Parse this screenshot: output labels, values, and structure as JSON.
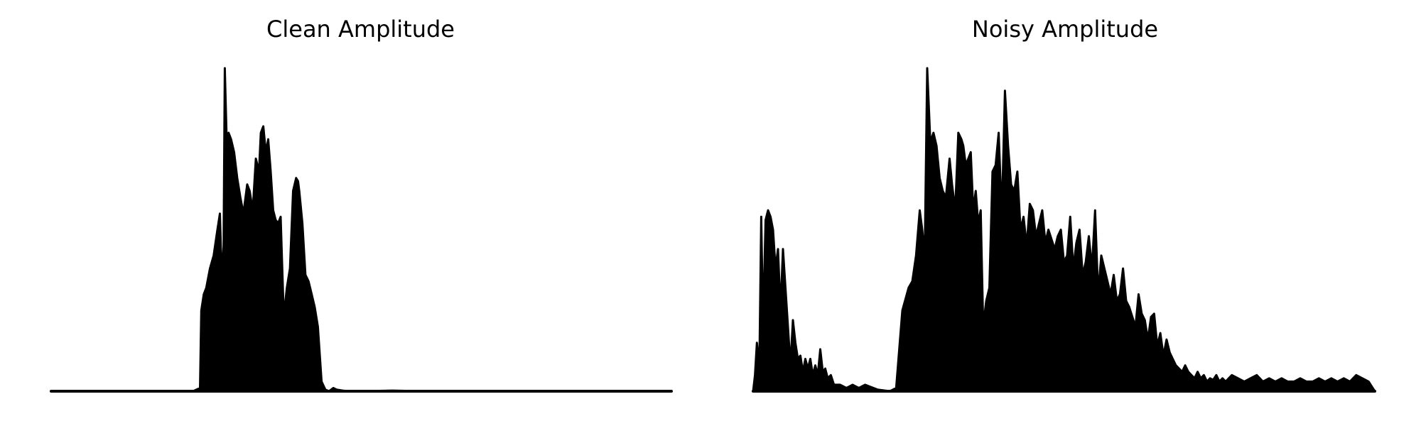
{
  "colors": {
    "line": "#000000",
    "background": "#ffffff"
  },
  "chart_data": [
    {
      "type": "area",
      "title": "Clean Amplitude",
      "axes_visible": false,
      "grid": false,
      "xlim": [
        0,
        1
      ],
      "ylim": [
        0,
        1
      ],
      "series": [
        {
          "x": [
            0.0,
            0.1,
            0.2,
            0.23,
            0.24,
            0.242,
            0.246,
            0.25,
            0.256,
            0.262,
            0.268,
            0.272,
            0.275,
            0.278,
            0.28,
            0.283,
            0.286,
            0.29,
            0.295,
            0.3,
            0.305,
            0.31,
            0.316,
            0.32,
            0.325,
            0.33,
            0.335,
            0.338,
            0.342,
            0.346,
            0.35,
            0.354,
            0.358,
            0.362,
            0.366,
            0.37,
            0.375,
            0.38,
            0.385,
            0.39,
            0.395,
            0.398,
            0.4,
            0.405,
            0.41,
            0.415,
            0.42,
            0.425,
            0.43,
            0.436,
            0.442,
            0.448,
            0.455,
            0.46,
            0.47,
            0.48,
            0.5,
            0.55,
            0.6,
            0.7,
            0.8,
            0.9,
            1.0
          ],
          "values": [
            0.0,
            0.0,
            0.0,
            0.001,
            0.01,
            0.25,
            0.3,
            0.32,
            0.38,
            0.42,
            0.5,
            0.55,
            0.35,
            0.45,
            1.0,
            0.77,
            0.8,
            0.78,
            0.74,
            0.66,
            0.6,
            0.55,
            0.64,
            0.62,
            0.56,
            0.72,
            0.68,
            0.8,
            0.82,
            0.74,
            0.78,
            0.68,
            0.56,
            0.53,
            0.52,
            0.54,
            0.23,
            0.32,
            0.38,
            0.62,
            0.66,
            0.65,
            0.62,
            0.52,
            0.36,
            0.34,
            0.3,
            0.26,
            0.2,
            0.03,
            0.005,
            0.0,
            0.01,
            0.005,
            0.002,
            0.0,
            0.0,
            0.002,
            0.0,
            0.0,
            0.0,
            0.0,
            0.0
          ]
        }
      ]
    },
    {
      "type": "area",
      "title": "Noisy Amplitude",
      "axes_visible": false,
      "grid": false,
      "xlim": [
        0,
        1
      ],
      "ylim": [
        0,
        1
      ],
      "series": [
        {
          "x": [
            0.0,
            0.003,
            0.006,
            0.01,
            0.013,
            0.016,
            0.02,
            0.024,
            0.028,
            0.032,
            0.036,
            0.04,
            0.044,
            0.048,
            0.052,
            0.056,
            0.06,
            0.064,
            0.068,
            0.072,
            0.076,
            0.08,
            0.084,
            0.088,
            0.092,
            0.096,
            0.1,
            0.104,
            0.108,
            0.112,
            0.116,
            0.12,
            0.125,
            0.13,
            0.14,
            0.15,
            0.16,
            0.17,
            0.18,
            0.2,
            0.22,
            0.23,
            0.24,
            0.25,
            0.256,
            0.262,
            0.268,
            0.272,
            0.276,
            0.28,
            0.285,
            0.29,
            0.295,
            0.3,
            0.305,
            0.31,
            0.316,
            0.32,
            0.325,
            0.33,
            0.335,
            0.338,
            0.342,
            0.346,
            0.35,
            0.354,
            0.358,
            0.362,
            0.366,
            0.37,
            0.375,
            0.38,
            0.385,
            0.39,
            0.395,
            0.4,
            0.405,
            0.41,
            0.415,
            0.42,
            0.425,
            0.43,
            0.435,
            0.44,
            0.445,
            0.45,
            0.455,
            0.46,
            0.465,
            0.47,
            0.475,
            0.48,
            0.485,
            0.49,
            0.495,
            0.5,
            0.505,
            0.51,
            0.515,
            0.52,
            0.525,
            0.53,
            0.535,
            0.54,
            0.545,
            0.55,
            0.555,
            0.56,
            0.565,
            0.57,
            0.575,
            0.58,
            0.585,
            0.59,
            0.595,
            0.6,
            0.605,
            0.61,
            0.615,
            0.62,
            0.625,
            0.63,
            0.635,
            0.64,
            0.645,
            0.65,
            0.655,
            0.66,
            0.665,
            0.67,
            0.675,
            0.68,
            0.685,
            0.69,
            0.695,
            0.7,
            0.705,
            0.71,
            0.715,
            0.72,
            0.725,
            0.73,
            0.735,
            0.74,
            0.745,
            0.75,
            0.755,
            0.76,
            0.77,
            0.78,
            0.79,
            0.8,
            0.81,
            0.82,
            0.83,
            0.84,
            0.85,
            0.86,
            0.87,
            0.88,
            0.89,
            0.9,
            0.91,
            0.92,
            0.93,
            0.94,
            0.95,
            0.96,
            0.97,
            0.98,
            0.99,
            1.0
          ],
          "values": [
            0.0,
            0.05,
            0.15,
            0.08,
            0.54,
            0.2,
            0.53,
            0.56,
            0.54,
            0.5,
            0.38,
            0.44,
            0.25,
            0.44,
            0.32,
            0.2,
            0.08,
            0.22,
            0.15,
            0.1,
            0.11,
            0.06,
            0.1,
            0.07,
            0.1,
            0.05,
            0.08,
            0.05,
            0.13,
            0.06,
            0.07,
            0.04,
            0.05,
            0.02,
            0.02,
            0.01,
            0.02,
            0.01,
            0.02,
            0.005,
            0.0,
            0.01,
            0.25,
            0.32,
            0.34,
            0.42,
            0.56,
            0.5,
            0.42,
            1.0,
            0.77,
            0.8,
            0.76,
            0.66,
            0.62,
            0.6,
            0.72,
            0.64,
            0.56,
            0.8,
            0.78,
            0.76,
            0.7,
            0.72,
            0.74,
            0.56,
            0.62,
            0.52,
            0.56,
            0.2,
            0.28,
            0.32,
            0.68,
            0.7,
            0.8,
            0.54,
            0.93,
            0.76,
            0.64,
            0.62,
            0.68,
            0.5,
            0.54,
            0.45,
            0.58,
            0.56,
            0.48,
            0.52,
            0.56,
            0.46,
            0.5,
            0.47,
            0.44,
            0.48,
            0.5,
            0.4,
            0.42,
            0.54,
            0.38,
            0.46,
            0.5,
            0.36,
            0.4,
            0.48,
            0.38,
            0.56,
            0.3,
            0.42,
            0.38,
            0.34,
            0.3,
            0.36,
            0.28,
            0.3,
            0.38,
            0.28,
            0.26,
            0.23,
            0.2,
            0.3,
            0.24,
            0.22,
            0.16,
            0.23,
            0.24,
            0.14,
            0.18,
            0.11,
            0.16,
            0.12,
            0.1,
            0.08,
            0.07,
            0.06,
            0.08,
            0.06,
            0.05,
            0.04,
            0.06,
            0.04,
            0.05,
            0.03,
            0.04,
            0.035,
            0.05,
            0.03,
            0.04,
            0.03,
            0.05,
            0.04,
            0.03,
            0.04,
            0.05,
            0.03,
            0.04,
            0.03,
            0.04,
            0.03,
            0.03,
            0.04,
            0.03,
            0.03,
            0.04,
            0.03,
            0.04,
            0.03,
            0.04,
            0.03,
            0.05,
            0.04,
            0.03,
            0.0
          ]
        }
      ]
    }
  ]
}
